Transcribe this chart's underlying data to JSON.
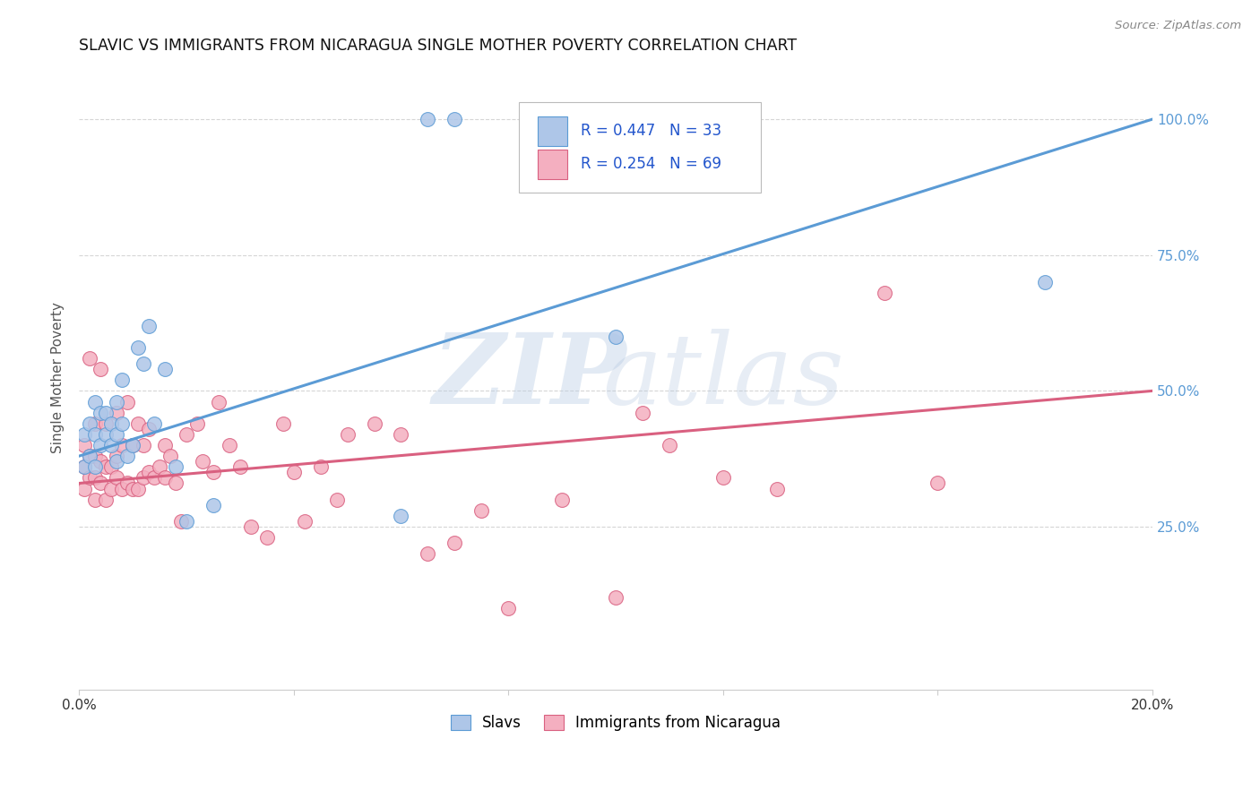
{
  "title": "SLAVIC VS IMMIGRANTS FROM NICARAGUA SINGLE MOTHER POVERTY CORRELATION CHART",
  "source": "Source: ZipAtlas.com",
  "ylabel_label": "Single Mother Poverty",
  "x_min": 0.0,
  "x_max": 0.2,
  "y_min": -0.05,
  "y_max": 1.1,
  "x_ticks": [
    0.0,
    0.04,
    0.08,
    0.12,
    0.16,
    0.2
  ],
  "x_tick_labels": [
    "0.0%",
    "",
    "",
    "",
    "",
    "20.0%"
  ],
  "y_tick_labels_right": [
    "25.0%",
    "50.0%",
    "75.0%",
    "100.0%"
  ],
  "y_tick_values_right": [
    0.25,
    0.5,
    0.75,
    1.0
  ],
  "legend_labels": [
    "Slavs",
    "Immigrants from Nicaragua"
  ],
  "legend_r_slavs": "R = 0.447",
  "legend_n_slavs": "N = 33",
  "legend_r_nicaragua": "R = 0.254",
  "legend_n_nicaragua": "N = 69",
  "color_slavs": "#aec6e8",
  "color_nicaragua": "#f4afc0",
  "color_slavs_line": "#5b9bd5",
  "color_nicaragua_line": "#d96080",
  "color_legend_text": "#2255cc",
  "slavs_x": [
    0.001,
    0.001,
    0.002,
    0.002,
    0.003,
    0.003,
    0.003,
    0.004,
    0.004,
    0.005,
    0.005,
    0.006,
    0.006,
    0.007,
    0.007,
    0.007,
    0.008,
    0.008,
    0.009,
    0.01,
    0.011,
    0.012,
    0.013,
    0.014,
    0.016,
    0.018,
    0.02,
    0.025,
    0.06,
    0.065,
    0.07,
    0.1,
    0.18
  ],
  "slavs_y": [
    0.36,
    0.42,
    0.38,
    0.44,
    0.36,
    0.42,
    0.48,
    0.4,
    0.46,
    0.42,
    0.46,
    0.4,
    0.44,
    0.37,
    0.42,
    0.48,
    0.44,
    0.52,
    0.38,
    0.4,
    0.58,
    0.55,
    0.62,
    0.44,
    0.54,
    0.36,
    0.26,
    0.29,
    0.27,
    1.0,
    1.0,
    0.6,
    0.7
  ],
  "nicaragua_x": [
    0.001,
    0.001,
    0.001,
    0.002,
    0.002,
    0.002,
    0.003,
    0.003,
    0.003,
    0.003,
    0.004,
    0.004,
    0.004,
    0.005,
    0.005,
    0.005,
    0.006,
    0.006,
    0.007,
    0.007,
    0.007,
    0.008,
    0.008,
    0.009,
    0.009,
    0.01,
    0.01,
    0.011,
    0.011,
    0.012,
    0.012,
    0.013,
    0.013,
    0.014,
    0.015,
    0.016,
    0.016,
    0.017,
    0.018,
    0.019,
    0.02,
    0.022,
    0.023,
    0.025,
    0.026,
    0.028,
    0.03,
    0.032,
    0.035,
    0.038,
    0.04,
    0.042,
    0.045,
    0.048,
    0.05,
    0.055,
    0.06,
    0.065,
    0.07,
    0.075,
    0.08,
    0.09,
    0.1,
    0.105,
    0.11,
    0.12,
    0.13,
    0.15,
    0.16
  ],
  "nicaragua_y": [
    0.32,
    0.36,
    0.4,
    0.34,
    0.38,
    0.56,
    0.3,
    0.34,
    0.38,
    0.44,
    0.33,
    0.37,
    0.54,
    0.3,
    0.36,
    0.44,
    0.32,
    0.36,
    0.34,
    0.38,
    0.46,
    0.32,
    0.4,
    0.33,
    0.48,
    0.32,
    0.4,
    0.32,
    0.44,
    0.34,
    0.4,
    0.35,
    0.43,
    0.34,
    0.36,
    0.4,
    0.34,
    0.38,
    0.33,
    0.26,
    0.42,
    0.44,
    0.37,
    0.35,
    0.48,
    0.4,
    0.36,
    0.25,
    0.23,
    0.44,
    0.35,
    0.26,
    0.36,
    0.3,
    0.42,
    0.44,
    0.42,
    0.2,
    0.22,
    0.28,
    0.1,
    0.3,
    0.12,
    0.46,
    0.4,
    0.34,
    0.32,
    0.68,
    0.33
  ],
  "slavs_line_x0": 0.0,
  "slavs_line_y0": 0.38,
  "slavs_line_x1": 0.2,
  "slavs_line_y1": 1.0,
  "nicaragua_line_x0": 0.0,
  "nicaragua_line_y0": 0.33,
  "nicaragua_line_x1": 0.2,
  "nicaragua_line_y1": 0.5
}
